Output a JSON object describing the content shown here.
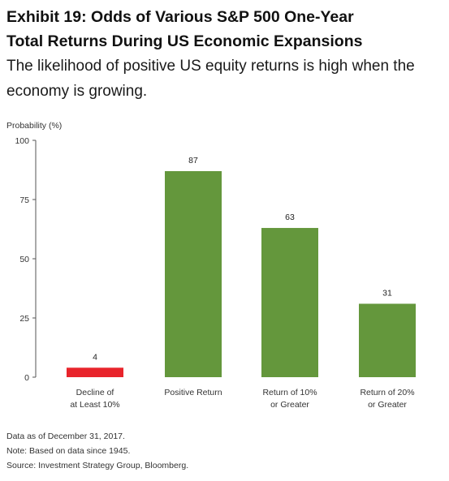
{
  "header": {
    "title_line1": "Exhibit 19: Odds of Various S&P 500 One-Year",
    "title_line2": "Total Returns During US Economic Expansions",
    "subtitle_line1": "The likelihood of positive US equity returns is high when the",
    "subtitle_line2": "economy is growing."
  },
  "chart_data": {
    "type": "bar",
    "ylabel": "Probability (%)",
    "xlabel": "",
    "ylim": [
      0,
      100
    ],
    "yticks": [
      0,
      25,
      50,
      75,
      100
    ],
    "categories": [
      [
        "Decline of",
        "at Least 10%"
      ],
      [
        "Positive Return"
      ],
      [
        "Return of 10%",
        "or Greater"
      ],
      [
        "Return of 20%",
        "or Greater"
      ]
    ],
    "values": [
      4,
      87,
      63,
      31
    ],
    "colors": [
      "#e8242b",
      "#64973c",
      "#64973c",
      "#64973c"
    ],
    "grid": false,
    "legend": "none"
  },
  "notes": {
    "line1": "Data as of December 31, 2017.",
    "line2": "Note: Based on data since 1945.",
    "line3": "Source: Investment Strategy Group, Bloomberg."
  }
}
